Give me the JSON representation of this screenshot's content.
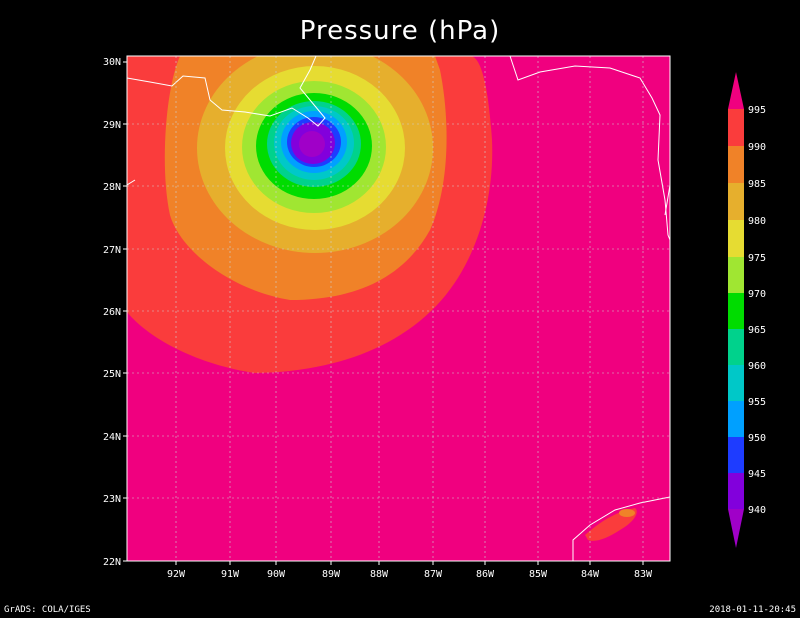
{
  "title": "Pressure (hPa)",
  "footer": {
    "left": "GrADS: COLA/IGES",
    "right": "2018-01-11-20:45"
  },
  "map": {
    "lat_labels": [
      "30N",
      "29N",
      "28N",
      "27N",
      "26N",
      "25N",
      "24N",
      "23N",
      "22N"
    ],
    "lon_labels": [
      "92W",
      "91W",
      "90W",
      "89W",
      "88W",
      "87W",
      "86W",
      "85W",
      "84W",
      "83W"
    ],
    "background_color": "#f0007f",
    "grid": "dashed",
    "coastline_color": "#ffffff"
  },
  "colorbar": {
    "levels": [
      "940",
      "945",
      "950",
      "955",
      "960",
      "965",
      "970",
      "975",
      "980",
      "985",
      "990",
      "995"
    ],
    "colors": [
      "#a000c8",
      "#8200dc",
      "#1e3cff",
      "#00a0ff",
      "#00c8c8",
      "#00d28c",
      "#00dc00",
      "#a0e632",
      "#e6dc32",
      "#e6af2d",
      "#f08228",
      "#fa3c3c",
      "#f0007f"
    ]
  }
}
